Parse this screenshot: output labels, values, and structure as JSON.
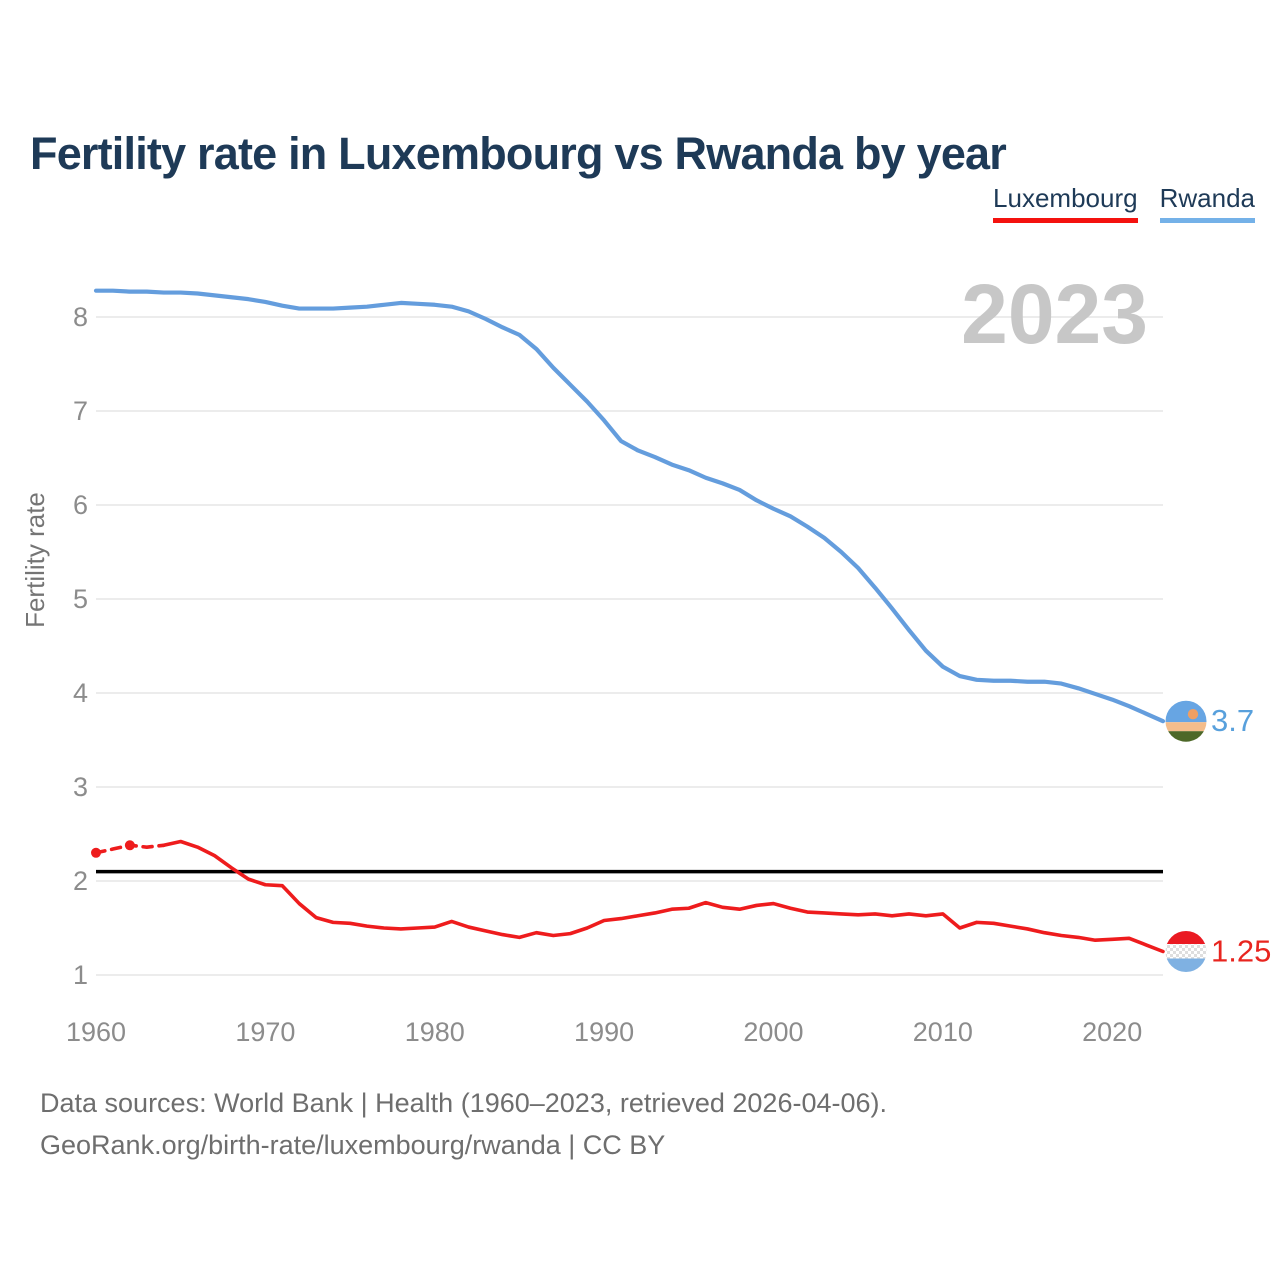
{
  "watermark_year": "2023",
  "legend": {
    "items": [
      {
        "label": "Luxembourg",
        "color": "#f4120f"
      },
      {
        "label": "Rwanda",
        "color": "#74b1e8"
      }
    ]
  },
  "footer": {
    "line1": "Data sources: World Bank | Health (1960–2023, retrieved 2026-04-06).",
    "line2": "GeoRank.org/birth-rate/luxembourg/rwanda | CC BY"
  },
  "chart_data": {
    "type": "line",
    "title": "Fertility rate in Luxembourg vs Rwanda by year",
    "ylabel": "Fertility rate",
    "xlabel": "",
    "grid": "horizontal",
    "legend_position": "top-right",
    "ylim": [
      0.8,
      8.6
    ],
    "xlim": [
      1960,
      2023
    ],
    "y_ticks": [
      1,
      2,
      3,
      4,
      5,
      6,
      7,
      8
    ],
    "x_ticks": [
      1960,
      1970,
      1980,
      1990,
      2000,
      2010,
      2020
    ],
    "reference_line": {
      "value": 2.1,
      "color": "#000000"
    },
    "x": [
      1960,
      1961,
      1962,
      1963,
      1964,
      1965,
      1966,
      1967,
      1968,
      1969,
      1970,
      1971,
      1972,
      1973,
      1974,
      1975,
      1976,
      1977,
      1978,
      1979,
      1980,
      1981,
      1982,
      1983,
      1984,
      1985,
      1986,
      1987,
      1988,
      1989,
      1990,
      1991,
      1992,
      1993,
      1994,
      1995,
      1996,
      1997,
      1998,
      1999,
      2000,
      2001,
      2002,
      2003,
      2004,
      2005,
      2006,
      2007,
      2008,
      2009,
      2010,
      2011,
      2012,
      2013,
      2014,
      2015,
      2016,
      2017,
      2018,
      2019,
      2020,
      2021,
      2022,
      2023
    ],
    "series": [
      {
        "name": "Luxembourg",
        "color": "#ee1c1d",
        "end_label": "1.25",
        "end_label_color": "#e8251f",
        "dashed_through_year": 1964,
        "marker_years": [
          1960,
          1962
        ],
        "flag_icon": "luxembourg-flag-icon",
        "flag_colors": {
          "red": "#ea1a22",
          "white": "#f7f7f7",
          "blue": "#7fb1e2"
        },
        "values": [
          2.3,
          2.34,
          2.38,
          2.36,
          2.38,
          2.42,
          2.36,
          2.27,
          2.14,
          2.02,
          1.96,
          1.95,
          1.76,
          1.61,
          1.56,
          1.55,
          1.52,
          1.5,
          1.49,
          1.5,
          1.51,
          1.57,
          1.51,
          1.47,
          1.43,
          1.4,
          1.45,
          1.42,
          1.44,
          1.5,
          1.58,
          1.6,
          1.63,
          1.66,
          1.7,
          1.71,
          1.77,
          1.72,
          1.7,
          1.74,
          1.76,
          1.71,
          1.67,
          1.66,
          1.65,
          1.64,
          1.65,
          1.63,
          1.65,
          1.63,
          1.65,
          1.5,
          1.56,
          1.55,
          1.52,
          1.49,
          1.45,
          1.42,
          1.4,
          1.37,
          1.38,
          1.39,
          1.32,
          1.25
        ]
      },
      {
        "name": "Rwanda",
        "color": "#649ddd",
        "end_label": "3.7",
        "end_label_color": "#58a0dc",
        "flag_icon": "rwanda-flag-icon",
        "flag_colors": {
          "blue": "#67a5e3",
          "band": "#f5bd8b",
          "green": "#4d6828",
          "sun": "#ef9f63"
        },
        "values": [
          8.28,
          8.28,
          8.27,
          8.27,
          8.26,
          8.26,
          8.25,
          8.23,
          8.21,
          8.19,
          8.16,
          8.12,
          8.09,
          8.09,
          8.09,
          8.1,
          8.11,
          8.13,
          8.15,
          8.14,
          8.13,
          8.11,
          8.06,
          7.98,
          7.89,
          7.81,
          7.66,
          7.46,
          7.28,
          7.1,
          6.9,
          6.68,
          6.58,
          6.51,
          6.43,
          6.37,
          6.29,
          6.23,
          6.16,
          6.05,
          5.96,
          5.88,
          5.77,
          5.65,
          5.5,
          5.33,
          5.12,
          4.9,
          4.67,
          4.45,
          4.28,
          4.18,
          4.14,
          4.13,
          4.13,
          4.12,
          4.12,
          4.1,
          4.05,
          3.99,
          3.93,
          3.86,
          3.78,
          3.7
        ]
      }
    ]
  }
}
